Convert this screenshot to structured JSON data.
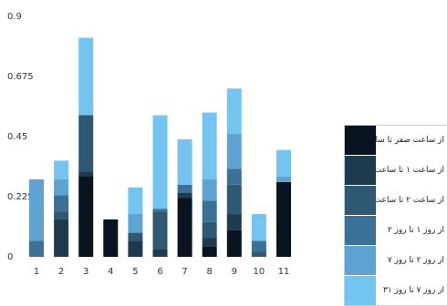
{
  "chart_data": {
    "type": "bar",
    "stacked": true,
    "title": "",
    "xlabel": "",
    "ylabel": "",
    "ylim": [
      0,
      0.9
    ],
    "yticks": [
      "0",
      "0.225",
      "0.45",
      "0.675",
      "0.9"
    ],
    "grid": false,
    "legend_position": "right",
    "categories": [
      "1",
      "2",
      "3",
      "4",
      "5",
      "6",
      "7",
      "8",
      "9",
      "10",
      "11"
    ],
    "series": [
      {
        "name": "از ساعت صفر تا ساعت ۱",
        "color": "#081520",
        "values": [
          0.0,
          0.0,
          0.3,
          0.14,
          0.0,
          0.0,
          0.22,
          0.04,
          0.1,
          0.0,
          0.28
        ]
      },
      {
        "name": "از ساعت ۱ تا ساعت ۲",
        "color": "#1e3a4f",
        "values": [
          0.0,
          0.14,
          0.02,
          0.0,
          0.06,
          0.03,
          0.02,
          0.03,
          0.06,
          0.0,
          0.0
        ]
      },
      {
        "name": "از ساعت ۲ تا ساعت ۲۴",
        "color": "#2f5873",
        "values": [
          0.0,
          0.03,
          0.21,
          0.0,
          0.03,
          0.14,
          0.0,
          0.06,
          0.11,
          0.02,
          0.0
        ]
      },
      {
        "name": "از روز ۱ تا روز ۲",
        "color": "#3b7196",
        "values": [
          0.06,
          0.06,
          0.0,
          0.0,
          0.0,
          0.01,
          0.03,
          0.08,
          0.06,
          0.04,
          0.0
        ]
      },
      {
        "name": "از روز ۲ تا روز ۷",
        "color": "#5ea3d2",
        "values": [
          0.23,
          0.06,
          0.0,
          0.0,
          0.07,
          0.0,
          0.0,
          0.08,
          0.13,
          0.0,
          0.02
        ]
      },
      {
        "name": "از روز ۷ تا روز ۳۱",
        "color": "#74c4f2",
        "values": [
          0.0,
          0.07,
          0.29,
          0.0,
          0.1,
          0.35,
          0.17,
          0.25,
          0.17,
          0.1,
          0.1
        ]
      }
    ]
  }
}
